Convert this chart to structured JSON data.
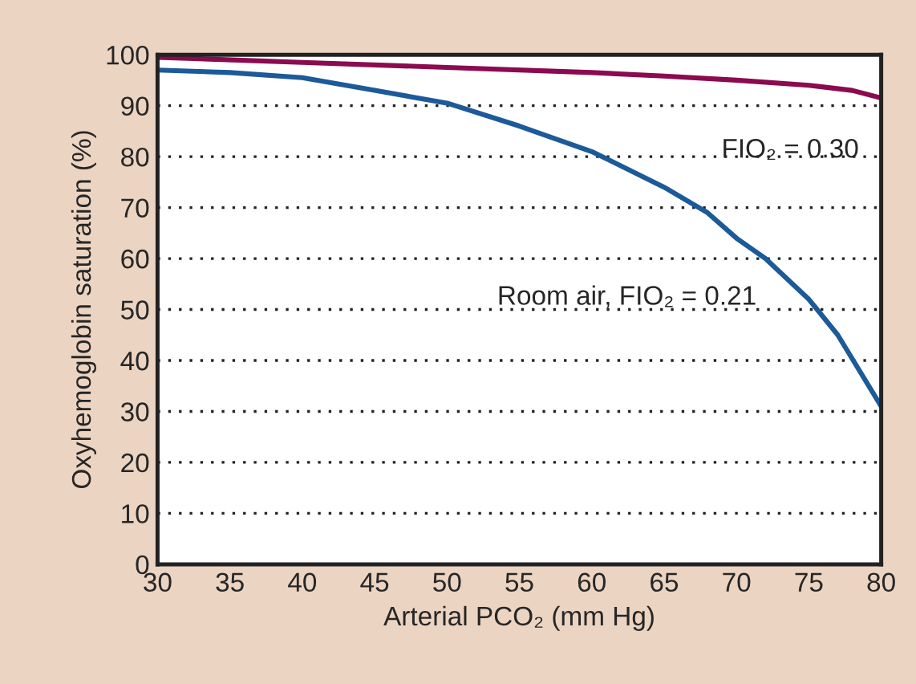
{
  "chart_data": {
    "type": "line",
    "xlabel": "Arterial PCO₂ (mm Hg)",
    "ylabel": "Oxyhemoglobin saturation (%)",
    "xlim": [
      30,
      80
    ],
    "ylim": [
      0,
      100
    ],
    "xticks": [
      30,
      35,
      40,
      45,
      50,
      55,
      60,
      65,
      70,
      75,
      80
    ],
    "yticks": [
      0,
      10,
      20,
      30,
      40,
      50,
      60,
      70,
      80,
      90,
      100
    ],
    "grid": "y",
    "legend": false,
    "line_style": "solid",
    "marker": "none",
    "series": [
      {
        "name": "FIO₂ = 0.30",
        "color": "#8b0a50",
        "x": [
          30,
          40,
          50,
          60,
          65,
          70,
          75,
          78,
          80
        ],
        "values": [
          99.5,
          98.5,
          97.5,
          96.5,
          95.8,
          95,
          94,
          93,
          91.5
        ]
      },
      {
        "name": "Room air, FIO₂ = 0.21",
        "color": "#1c5a99",
        "x": [
          30,
          35,
          40,
          45,
          50,
          55,
          60,
          65,
          68,
          70,
          72,
          75,
          77,
          80
        ],
        "values": [
          97,
          96.5,
          95.5,
          93,
          90.5,
          86,
          81,
          74,
          69,
          64,
          60,
          52,
          45,
          31
        ]
      }
    ]
  }
}
